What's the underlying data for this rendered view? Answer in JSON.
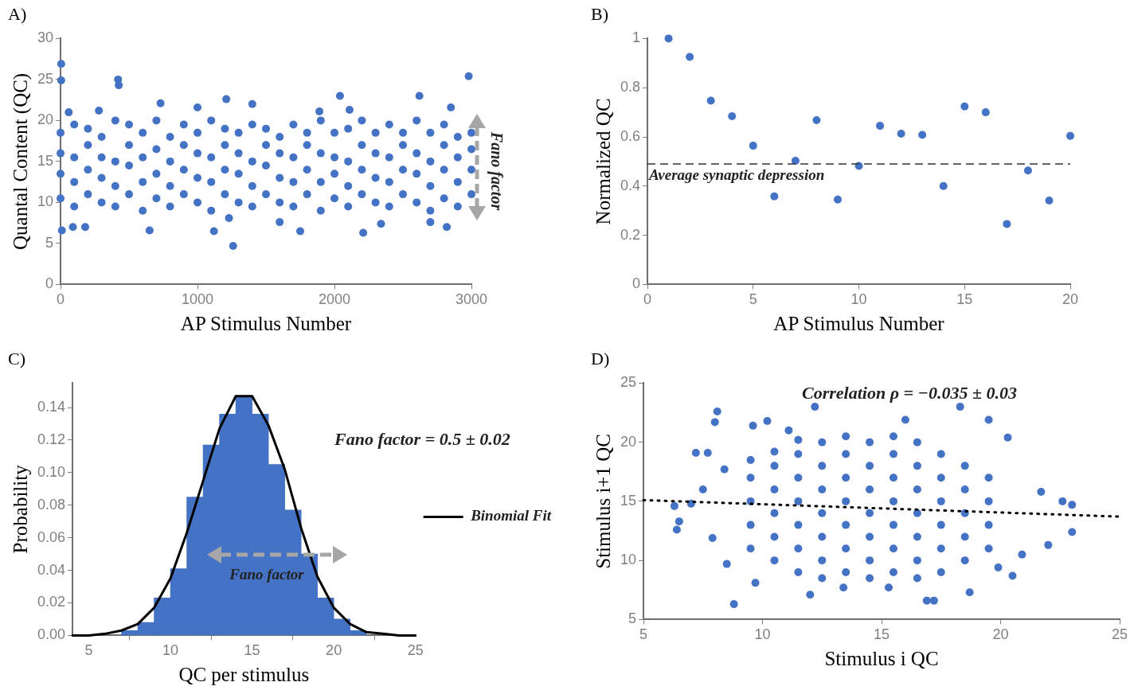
{
  "chart_data": [
    {
      "type": "scatter",
      "title": "A)",
      "xlabel": "AP Stimulus Number",
      "ylabel": "Quantal Content (QC)",
      "color": "#4472c4",
      "marker": "circle",
      "grid": false,
      "x": [
        5,
        5,
        420,
        425,
        2980,
        2040,
        2620,
        1210,
        730,
        1400,
        2210,
        1260,
        650,
        1120,
        1750,
        10,
        90,
        180,
        2340,
        2820,
        1600,
        2700,
        1230,
        1000,
        2110,
        2850,
        60,
        280,
        1890,
        0,
        0,
        0,
        0,
        100,
        100,
        100,
        100,
        200,
        200,
        200,
        200,
        300,
        300,
        300,
        300,
        400,
        400,
        400,
        400,
        500,
        500,
        500,
        500,
        600,
        600,
        600,
        600,
        700,
        700,
        700,
        700,
        800,
        800,
        800,
        800,
        900,
        900,
        900,
        900,
        1000,
        1000,
        1000,
        1000,
        1100,
        1100,
        1100,
        1100,
        1200,
        1200,
        1200,
        1200,
        1300,
        1300,
        1300,
        1300,
        1400,
        1400,
        1400,
        1400,
        1500,
        1500,
        1500,
        1500,
        1600,
        1600,
        1600,
        1600,
        1700,
        1700,
        1700,
        1700,
        1800,
        1800,
        1800,
        1800,
        1900,
        1900,
        1900,
        1900,
        2000,
        2000,
        2000,
        2000,
        2100,
        2100,
        2100,
        2100,
        2200,
        2200,
        2200,
        2200,
        2300,
        2300,
        2300,
        2300,
        2400,
        2400,
        2400,
        2400,
        2500,
        2500,
        2500,
        2500,
        2600,
        2600,
        2600,
        2600,
        2700,
        2700,
        2700,
        2700,
        2800,
        2800,
        2800,
        2800,
        2900,
        2900,
        2900,
        2900,
        3000,
        3000,
        3000,
        3000
      ],
      "values": [
        26.9,
        24.9,
        25,
        24.3,
        25.4,
        23,
        23,
        22.6,
        22.1,
        22,
        6.3,
        4.7,
        6.6,
        6.5,
        6.5,
        6.6,
        7,
        7,
        7.4,
        7,
        7.6,
        7.6,
        8.1,
        21.6,
        21.3,
        21.6,
        21,
        21.2,
        21.1,
        10.5,
        13.5,
        16,
        18.5,
        9.5,
        12.5,
        15.5,
        19.5,
        11,
        14,
        17,
        19,
        10,
        13,
        15.5,
        18,
        9.5,
        12,
        15,
        20,
        11,
        14.5,
        17,
        19.5,
        9,
        12.5,
        15.5,
        18.5,
        10.5,
        13.5,
        16.5,
        20,
        9.5,
        12,
        15,
        18,
        11,
        14,
        17,
        19.5,
        10,
        13,
        16,
        18.5,
        9,
        12.5,
        15.5,
        20,
        11,
        14,
        17,
        19,
        10,
        13.5,
        16,
        18.5,
        9.5,
        12,
        15,
        19.5,
        11,
        14.5,
        17,
        19,
        10,
        13,
        16,
        18,
        9.5,
        12.5,
        15.5,
        19.5,
        11,
        14,
        17,
        18.5,
        9,
        12.5,
        16,
        20,
        10.5,
        13.5,
        15.5,
        18.5,
        9.5,
        12,
        15,
        19,
        11,
        14,
        17,
        20,
        10,
        13,
        16,
        18.5,
        9.5,
        12.5,
        15.5,
        19.5,
        11,
        14,
        17,
        18.5,
        10,
        13.5,
        16,
        20,
        9,
        12,
        15,
        18.5,
        10.5,
        14,
        17,
        19.5,
        9.5,
        12.5,
        15.5,
        18,
        11,
        14,
        16.5,
        18.5
      ],
      "xlim": [
        0,
        3000
      ],
      "xticks": [
        0,
        1000,
        2000,
        3000
      ],
      "ylim": [
        0,
        30
      ],
      "yticks": [
        0,
        5,
        10,
        15,
        20,
        25,
        30
      ],
      "annotations": [
        "Fano factor"
      ]
    },
    {
      "type": "scatter",
      "title": "B)",
      "xlabel": "AP Stimulus Number",
      "ylabel": "Normalized QC",
      "color": "#4472c4",
      "marker": "circle",
      "grid": false,
      "x": [
        1,
        2,
        3,
        4,
        5,
        6,
        7,
        8,
        9,
        10,
        11,
        12,
        13,
        14,
        15,
        16,
        17,
        18,
        19,
        20
      ],
      "values": [
        1,
        0.925,
        0.747,
        0.684,
        0.564,
        0.358,
        0.503,
        0.668,
        0.345,
        0.482,
        0.645,
        0.613,
        0.608,
        0.4,
        0.724,
        0.7,
        0.246,
        0.463,
        0.341,
        0.604
      ],
      "xlim": [
        0,
        20
      ],
      "xticks": [
        0,
        5,
        10,
        15,
        20
      ],
      "ylim": [
        0,
        1
      ],
      "yticks": [
        0,
        0.2,
        0.4,
        0.6,
        0.8,
        1
      ],
      "ref_lines": [
        {
          "axis": "y",
          "value": 0.49,
          "label": "Average synaptic depression",
          "color": "#333333",
          "line_style": "dashed"
        }
      ]
    },
    {
      "type": "histogram",
      "title": "C)",
      "xlabel": "QC per stimulus",
      "ylabel": "Probability",
      "color": "#4472c4",
      "grid": false,
      "legend": "right",
      "bins": [
        7,
        8,
        9,
        10,
        11,
        12,
        13,
        14,
        15,
        16,
        17,
        18,
        19,
        20,
        21,
        22
      ],
      "values": [
        0.003,
        0.008,
        0.023,
        0.041,
        0.085,
        0.117,
        0.136,
        0.147,
        0.136,
        0.105,
        0.077,
        0.05,
        0.023,
        0.01,
        0.003
      ],
      "series": [
        {
          "name": "Binomial Fit",
          "type": "line",
          "color": "#000000",
          "x": [
            4,
            5,
            6,
            7,
            8,
            9,
            10,
            11,
            12,
            13,
            14,
            15,
            16,
            17,
            18,
            19,
            20,
            21,
            22,
            23,
            24,
            25
          ],
          "values": [
            0,
            0,
            0.001,
            0.003,
            0.007,
            0.017,
            0.035,
            0.063,
            0.095,
            0.127,
            0.147,
            0.147,
            0.129,
            0.102,
            0.066,
            0.036,
            0.017,
            0.007,
            0.002,
            0.001,
            0,
            0
          ]
        }
      ],
      "xlim": [
        4,
        25
      ],
      "xticks": [
        5,
        10,
        15,
        20,
        25
      ],
      "ylim": [
        0,
        0.155
      ],
      "yticks": [
        {
          "value": 0,
          "label": "0.00"
        },
        {
          "value": 0.02,
          "label": "0.02"
        },
        {
          "value": 0.04,
          "label": "0.04"
        },
        {
          "value": 0.06,
          "label": "0.06"
        },
        {
          "value": 0.08,
          "label": "0.08"
        },
        {
          "value": 0.1,
          "label": "0.10"
        },
        {
          "value": 0.12,
          "label": "0.12"
        },
        {
          "value": 0.14,
          "label": "0.14"
        }
      ],
      "annotations": [
        "Fano factor = 0.5 ± 0.02",
        "Fano factor"
      ]
    },
    {
      "type": "scatter",
      "title": "D)",
      "xlabel": "Stimulus i QC",
      "ylabel": "Stimulus i+1 QC",
      "marker": "circle",
      "grid": false,
      "series": [
        {
          "color": "#4472c4",
          "x": [
            8.1,
            8,
            12.2,
            18.3,
            16,
            19.5,
            10.2,
            9.6,
            11.1,
            7.2,
            7.7,
            6.3,
            6.5,
            6.4,
            7,
            7.9,
            8.8,
            9.7,
            12,
            16.9,
            17.2,
            18.7,
            22.6,
            23,
            23,
            22,
            20.9,
            20.5,
            20.3,
            21.7,
            8.5,
            13.4,
            15.3,
            19.9,
            7.5,
            8.4,
            9.5,
            9.5,
            9.5,
            9.5,
            9.5,
            10.5,
            10.5,
            10.5,
            10.5,
            10.5,
            10.5,
            11.5,
            11.5,
            11.5,
            11.5,
            11.5,
            11.5,
            11.5,
            12.5,
            12.5,
            12.5,
            12.5,
            12.5,
            12.5,
            12.5,
            13.5,
            13.5,
            13.5,
            13.5,
            13.5,
            13.5,
            13.5,
            14.5,
            14.5,
            14.5,
            14.5,
            14.5,
            14.5,
            14.5,
            15.5,
            15.5,
            15.5,
            15.5,
            15.5,
            15.5,
            15.5,
            16.5,
            16.5,
            16.5,
            16.5,
            16.5,
            16.5,
            16.5,
            17.5,
            17.5,
            17.5,
            17.5,
            17.5,
            17.5,
            18.5,
            18.5,
            18.5,
            18.5,
            18.5,
            19.5,
            19.5,
            19.5,
            19.5
          ],
          "values": [
            22.6,
            21.7,
            23,
            23,
            21.9,
            21.9,
            21.8,
            21.4,
            21,
            19.1,
            19.1,
            14.6,
            13.3,
            12.6,
            14.8,
            11.9,
            6.3,
            8.1,
            7.1,
            6.6,
            6.6,
            7.3,
            15,
            14.7,
            12.4,
            11.3,
            10.5,
            8.7,
            20.4,
            15.8,
            9.7,
            7.7,
            7.7,
            9.4,
            16,
            17.7,
            11,
            13,
            15,
            17,
            18.5,
            10,
            12,
            14,
            16,
            18,
            19.2,
            9,
            11,
            13,
            15,
            17,
            19,
            20.2,
            8.5,
            10,
            12,
            14,
            16,
            18,
            20,
            9,
            11,
            13,
            15,
            17,
            19,
            20.5,
            8.5,
            10,
            12,
            14,
            16,
            18,
            20,
            9,
            11,
            13,
            15,
            17,
            19,
            20.5,
            8.5,
            10,
            12,
            14,
            16,
            18,
            20,
            9,
            11,
            13,
            15,
            17,
            19,
            10,
            12,
            14,
            16,
            18,
            11,
            13,
            15,
            17
          ]
        },
        {
          "type": "line",
          "color": "#000000",
          "line_style": "dotted",
          "marker": "none",
          "x": [
            5,
            25
          ],
          "values": [
            15.1,
            13.7
          ]
        }
      ],
      "xlim": [
        5,
        25
      ],
      "xticks": [
        5,
        10,
        15,
        20,
        25
      ],
      "ylim": [
        5,
        25
      ],
      "yticks": [
        5,
        10,
        15,
        20,
        25
      ],
      "annotations": [
        "Correlation ρ = −0.035 ± 0.03"
      ]
    }
  ]
}
